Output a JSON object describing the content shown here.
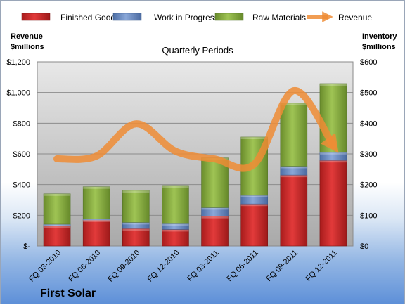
{
  "company": "First Solar",
  "chart_data": {
    "type": "bar",
    "stacked": true,
    "title": "Quarterly Periods",
    "categories": [
      "FQ 03-2010",
      "FQ 06-2010",
      "FQ 09-2010",
      "FQ 12-2010",
      "FQ 03-2011",
      "FQ 06-2011",
      "FQ 09-2011",
      "FQ 12-2011"
    ],
    "series": [
      {
        "name": "Finished Goods",
        "axis": "right",
        "color": "#d42d2d",
        "values": [
          65,
          85,
          57,
          54,
          97,
          137,
          231,
          279
        ]
      },
      {
        "name": "Work in Progress",
        "axis": "right",
        "color": "#6e8fc6",
        "values": [
          6,
          3,
          20,
          19,
          28,
          28,
          29,
          26
        ]
      },
      {
        "name": "Raw Materials",
        "axis": "right",
        "color": "#8db243",
        "values": [
          99,
          105,
          104,
          124,
          162,
          190,
          205,
          224
        ]
      },
      {
        "name": "Revenue",
        "type": "line",
        "axis": "left",
        "color": "#ef8c35",
        "values": [
          568,
          586,
          796,
          618,
          567,
          534,
          1012,
          654
        ]
      }
    ],
    "left_axis": {
      "label_line1": "Revenue",
      "label_line2": "$millions",
      "min": 0,
      "max": 1200,
      "step": 200,
      "tick_labels": [
        "$-",
        "$200",
        "$400",
        "$600",
        "$800",
        "$1,000",
        "$1,200"
      ]
    },
    "right_axis": {
      "label_line1": "Inventory",
      "label_line2": "$millions",
      "min": 0,
      "max": 600,
      "step": 100,
      "tick_labels": [
        "$0",
        "$100",
        "$200",
        "$300",
        "$400",
        "$500",
        "$600"
      ]
    },
    "legend_position": "top",
    "grid": true
  }
}
